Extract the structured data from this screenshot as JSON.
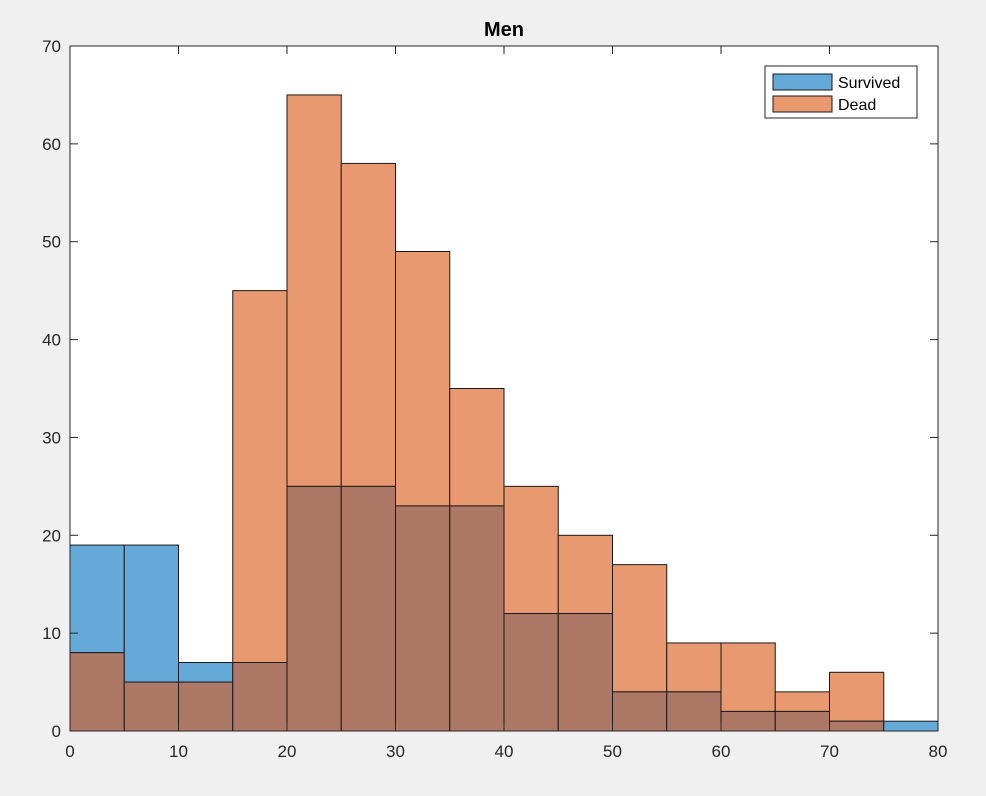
{
  "chart_data": {
    "type": "bar",
    "title": "Men",
    "xlabel": "",
    "ylabel": "",
    "xlim": [
      0,
      80
    ],
    "ylim": [
      0,
      70
    ],
    "xticks": [
      0,
      10,
      20,
      30,
      40,
      50,
      60,
      70,
      80
    ],
    "yticks": [
      0,
      10,
      20,
      30,
      40,
      50,
      60,
      70
    ],
    "bin_edges": [
      0,
      5,
      10,
      15,
      20,
      25,
      30,
      35,
      40,
      45,
      50,
      55,
      60,
      65,
      70,
      75,
      80
    ],
    "grid": false,
    "legend_position": "top-right",
    "series": [
      {
        "name": "Survived",
        "color": "#65a9d8",
        "values": [
          19,
          19,
          7,
          7,
          25,
          25,
          23,
          23,
          12,
          12,
          4,
          4,
          2,
          2,
          1,
          1
        ]
      },
      {
        "name": "Dead",
        "color": "#e8996f",
        "values": [
          8,
          5,
          5,
          45,
          65,
          58,
          49,
          35,
          25,
          20,
          17,
          9,
          9,
          4,
          6,
          0
        ]
      }
    ],
    "overlap_color": "#ad7866"
  }
}
